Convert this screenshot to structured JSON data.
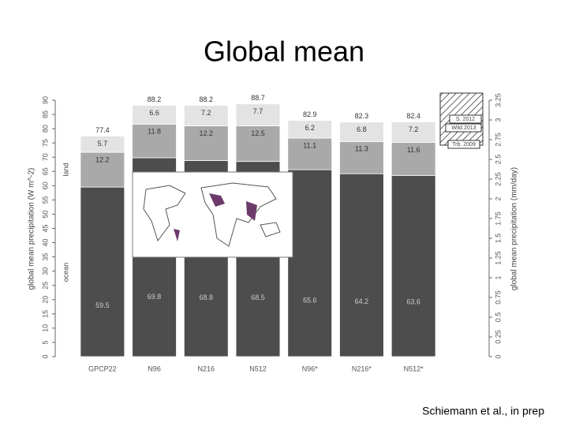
{
  "chart_data": {
    "type": "stacked-bar",
    "title": "Global mean",
    "ylabel": "global mean precipitation (W m^-2)",
    "y2label": "global mean precipitation (mm/day)",
    "categories": [
      "GPCP22",
      "N96",
      "N216",
      "N512",
      "N96*",
      "N216*",
      "N512*"
    ],
    "series": [
      {
        "color": "#4d4d4d",
        "values": [
          59.5,
          69.8,
          68.8,
          68.5,
          65.6,
          64.2,
          63.6
        ]
      },
      {
        "color": "#a9a9a9",
        "values": [
          12.2,
          11.8,
          12.2,
          12.5,
          11.1,
          11.3,
          11.6
        ]
      },
      {
        "color": "#e3e3e3",
        "values": [
          5.7,
          6.6,
          7.2,
          7.7,
          6.2,
          6.8,
          7.2
        ]
      }
    ],
    "totals": [
      77.4,
      88.2,
      88.2,
      88.7,
      82.9,
      82.3,
      82.4
    ],
    "ylim": [
      0,
      90
    ],
    "yticks": [
      0,
      5,
      10,
      15,
      20,
      25,
      30,
      35,
      40,
      45,
      50,
      55,
      60,
      65,
      70,
      75,
      80,
      85,
      90
    ],
    "y2lim": [
      0,
      3.25
    ],
    "y2ticks": [
      0,
      0.25,
      0.5,
      0.75,
      1,
      1.25,
      1.5,
      1.75,
      2,
      2.25,
      2.5,
      2.75,
      3,
      3.25
    ],
    "annotations": [
      "ocean",
      "land",
      "S. 2012",
      "Wild 2013",
      "Trb. 2009"
    ],
    "source": "Schiemann et al., in prep"
  }
}
